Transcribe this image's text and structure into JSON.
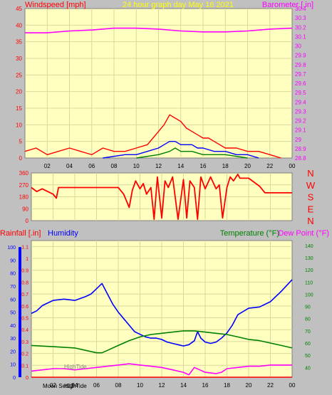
{
  "colors": {
    "background": "#c0c0c0",
    "plot_bg": "#ffffc0",
    "grid": "#d8d8a0",
    "red": "#ff0000",
    "magenta": "#ff00ff",
    "blue": "#0000ff",
    "green": "#008000",
    "dark_green": "#008000",
    "title": "#ffff00",
    "axis_text": "#000000"
  },
  "chart_data": [
    {
      "type": "line",
      "panel": "wind-barometer",
      "title": "24 hour graph day   May 16 2021",
      "left_axis_label": "Windspeed [mph]",
      "right_axis_label": "Barometer [.in]",
      "x_tick_labels": [
        "02",
        "04",
        "06",
        "08",
        "10",
        "12",
        "14",
        "16",
        "18",
        "20",
        "22",
        "00"
      ],
      "x_range": [
        0,
        24
      ],
      "left_ylim": [
        0,
        45
      ],
      "left_ticks": [
        0,
        5,
        10,
        15,
        20,
        25,
        30,
        35,
        40,
        45
      ],
      "right_ylim": [
        28.8,
        30.4
      ],
      "right_ticks": [
        "28.8",
        "28.9",
        "29",
        "29.1",
        "29.2",
        "29.3",
        "29.4",
        "29.5",
        "29.6",
        "29.7",
        "29.8",
        "29.9",
        "30",
        "30.1",
        "30.2",
        "30.3",
        "30.4"
      ],
      "series": [
        {
          "key": "barometer",
          "axis": "right",
          "color": "#ff00ff",
          "x": [
            0,
            2,
            4,
            6,
            8,
            10,
            12,
            14,
            16,
            18,
            20,
            22,
            24
          ],
          "y": [
            30.14,
            30.14,
            30.16,
            30.17,
            30.19,
            30.19,
            30.18,
            30.16,
            30.15,
            30.15,
            30.16,
            30.18,
            30.19
          ]
        },
        {
          "key": "wind-gust",
          "axis": "left",
          "color": "#ff0000",
          "x": [
            0,
            1,
            2,
            3,
            4,
            5,
            6,
            7,
            8,
            9,
            10,
            11,
            11.5,
            12,
            12.5,
            13,
            13.5,
            14,
            14.5,
            15,
            15.5,
            16,
            16.5,
            17,
            17.5,
            18,
            19,
            20,
            21,
            22,
            23
          ],
          "y": [
            2,
            3,
            1,
            2,
            3,
            2,
            1,
            3,
            2,
            2,
            3,
            4,
            6,
            8,
            10,
            13,
            12,
            11,
            9,
            8,
            7,
            6,
            6,
            5,
            4,
            3,
            3,
            2,
            2,
            1,
            0
          ]
        },
        {
          "key": "wind-speed",
          "axis": "left",
          "color": "#0000ff",
          "x": [
            7,
            9,
            10,
            11,
            12,
            12.5,
            13,
            13.5,
            14,
            14.5,
            15,
            15.5,
            16,
            17,
            18,
            19,
            20,
            21
          ],
          "y": [
            0,
            1,
            1,
            2,
            3,
            4,
            5,
            5,
            4,
            4,
            4,
            3,
            3,
            2,
            2,
            1,
            1,
            0
          ]
        },
        {
          "key": "wind-avg",
          "axis": "left",
          "color": "#008000",
          "x": [
            10,
            12,
            13,
            13.5,
            14,
            15,
            16,
            18,
            20
          ],
          "y": [
            0,
            1,
            2,
            3,
            2,
            2,
            1,
            1,
            0
          ]
        }
      ]
    },
    {
      "type": "line",
      "panel": "wind-direction",
      "left_ticks": [
        0,
        90,
        180,
        270,
        360
      ],
      "right_labels": [
        "N",
        "W",
        "S",
        "E",
        "N"
      ],
      "ylim": [
        0,
        360
      ],
      "x_range": [
        0,
        24
      ],
      "series": [
        {
          "key": "wind-direction",
          "color": "#ff0000",
          "x": [
            0,
            0.5,
            1,
            1.5,
            2,
            2.3,
            2.5,
            3,
            8,
            8.5,
            9,
            9.3,
            9.6,
            10,
            10.3,
            10.6,
            11,
            11.3,
            11.6,
            12,
            12.3,
            12.6,
            13,
            13.5,
            14,
            14.3,
            14.6,
            15,
            15.3,
            15.6,
            16,
            16.5,
            17,
            17.3,
            17.6,
            18,
            18.3,
            18.6,
            19,
            19.2,
            20,
            21,
            21.5,
            22,
            24
          ],
          "y": [
            250,
            220,
            240,
            220,
            200,
            170,
            250,
            250,
            250,
            200,
            100,
            230,
            300,
            240,
            280,
            200,
            250,
            10,
            330,
            20,
            300,
            250,
            330,
            10,
            310,
            20,
            300,
            250,
            10,
            330,
            240,
            330,
            240,
            270,
            20,
            250,
            330,
            300,
            350,
            320,
            320,
            260,
            210,
            210,
            210
          ]
        }
      ]
    },
    {
      "type": "line",
      "panel": "rain-humidity-temp",
      "rain_label": "Rainfall [.in]",
      "humidity_label": "Humidity",
      "temperature_label": "Temperature (°F)",
      "dewpoint_label": "Dew Point (°F)",
      "x_tick_labels": [
        "02",
        "04",
        "06",
        "08",
        "10",
        "12",
        "14",
        "16",
        "18",
        "20",
        "22",
        "00"
      ],
      "x_range": [
        0,
        24
      ],
      "humidity_ticks": [
        0,
        10,
        20,
        30,
        40,
        50,
        60,
        70,
        80,
        90,
        100
      ],
      "rain_ticks": [
        "0",
        "0.1",
        "0.2",
        "0.3",
        "0.4",
        "0.5",
        "0.6",
        "0.7",
        "0.8",
        "0.9",
        "1",
        "1.1"
      ],
      "rain_ylim": [
        0,
        1.15
      ],
      "temp_ticks": [
        40,
        50,
        60,
        70,
        80,
        90,
        100,
        110,
        120,
        130,
        140
      ],
      "temp_ylim": [
        32,
        144
      ],
      "annotations": [
        "Moon Set02",
        "HighTide",
        "HighTide"
      ],
      "series": [
        {
          "key": "humidity",
          "axis": "humidity",
          "color": "#0000ff",
          "x": [
            0,
            0.5,
            1,
            2,
            3,
            4,
            5,
            5.5,
            6,
            6.5,
            7,
            7.5,
            8,
            8.5,
            9,
            9.5,
            10,
            10.5,
            11,
            11.5,
            12,
            12.5,
            13,
            13.5,
            14,
            14.5,
            15,
            15.3,
            15.6,
            16,
            16.5,
            17,
            17.5,
            18,
            18.5,
            19,
            20,
            21,
            22,
            23,
            24
          ],
          "y": [
            49,
            51,
            55,
            59,
            60,
            59,
            62,
            64,
            68,
            72,
            64,
            56,
            50,
            45,
            40,
            35,
            33,
            31,
            30,
            30,
            29,
            27,
            26,
            25,
            24,
            25,
            28,
            35,
            30,
            27,
            26,
            27,
            30,
            34,
            40,
            48,
            53,
            54,
            58,
            66,
            75
          ]
        },
        {
          "key": "temperature",
          "axis": "temp",
          "color": "#008000",
          "x": [
            0,
            2,
            4,
            5,
            6,
            6.5,
            7,
            8,
            9,
            10,
            11,
            12,
            13,
            14,
            15,
            16,
            17,
            18,
            19,
            20,
            21,
            22,
            23,
            24
          ],
          "y": [
            58,
            57,
            56,
            54,
            52,
            52,
            54,
            58,
            62,
            65,
            67,
            68,
            69,
            70,
            70,
            69,
            68,
            67,
            65,
            63,
            62,
            60,
            58,
            56
          ]
        },
        {
          "key": "dew-point",
          "axis": "temp",
          "color": "#ff00ff",
          "x": [
            0,
            1,
            2,
            3,
            4,
            5,
            6,
            7,
            8,
            9,
            10,
            11,
            12,
            13,
            14,
            14.5,
            15,
            15.5,
            16,
            17,
            17.5,
            18,
            19,
            20,
            21,
            22,
            23,
            24
          ],
          "y": [
            37,
            38,
            39,
            39,
            38,
            39,
            40,
            41,
            42,
            43,
            42,
            41,
            40,
            38,
            36,
            34,
            40,
            38,
            36,
            35,
            36,
            39,
            40,
            41,
            41,
            42,
            42,
            42
          ]
        },
        {
          "key": "rainfall",
          "axis": "rain",
          "color": "#ff0000",
          "x": [
            0,
            24
          ],
          "y": [
            0,
            0
          ]
        }
      ]
    }
  ]
}
